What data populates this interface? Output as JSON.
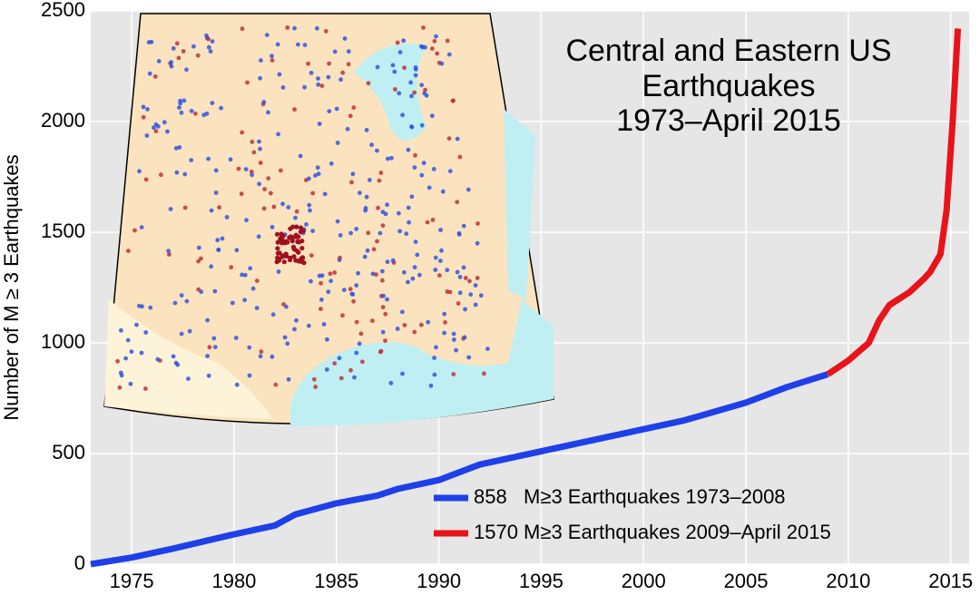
{
  "chart_data": {
    "type": "line",
    "title": [
      "Central and Eastern US",
      "Earthquakes",
      "1973–April 2015"
    ],
    "ylabel": "Number of M ≥ 3 Earthquakes",
    "xlim": [
      1973,
      2015.9
    ],
    "ylim": [
      0,
      2500
    ],
    "xticks": [
      1975,
      1980,
      1985,
      1990,
      1995,
      2000,
      2005,
      2010,
      2015
    ],
    "yticks": [
      0,
      500,
      1000,
      1500,
      2000,
      2500
    ],
    "grid": true,
    "legend": "lower right",
    "series": [
      {
        "name": "858   M≥3 Earthquakes 1973–2008",
        "color": "#1f3fe8",
        "x": [
          1973,
          1975,
          1977,
          1980,
          1982,
          1983,
          1985,
          1987,
          1988,
          1990,
          1992,
          1995,
          1997,
          2000,
          2002,
          2005,
          2007,
          2009
        ],
        "values": [
          0,
          30,
          70,
          135,
          175,
          225,
          275,
          310,
          340,
          380,
          450,
          510,
          550,
          610,
          650,
          730,
          800,
          858
        ]
      },
      {
        "name": "1570 M≥3 Earthquakes 2009–April 2015",
        "color": "#e8141a",
        "x": [
          2009,
          2010,
          2011,
          2011.5,
          2012,
          2013,
          2013.7,
          2014,
          2014.5,
          2014.8,
          2015.1,
          2015.35
        ],
        "values": [
          858,
          920,
          1000,
          1100,
          1170,
          1230,
          1290,
          1320,
          1400,
          1600,
          2000,
          2420
        ]
      }
    ]
  }
}
